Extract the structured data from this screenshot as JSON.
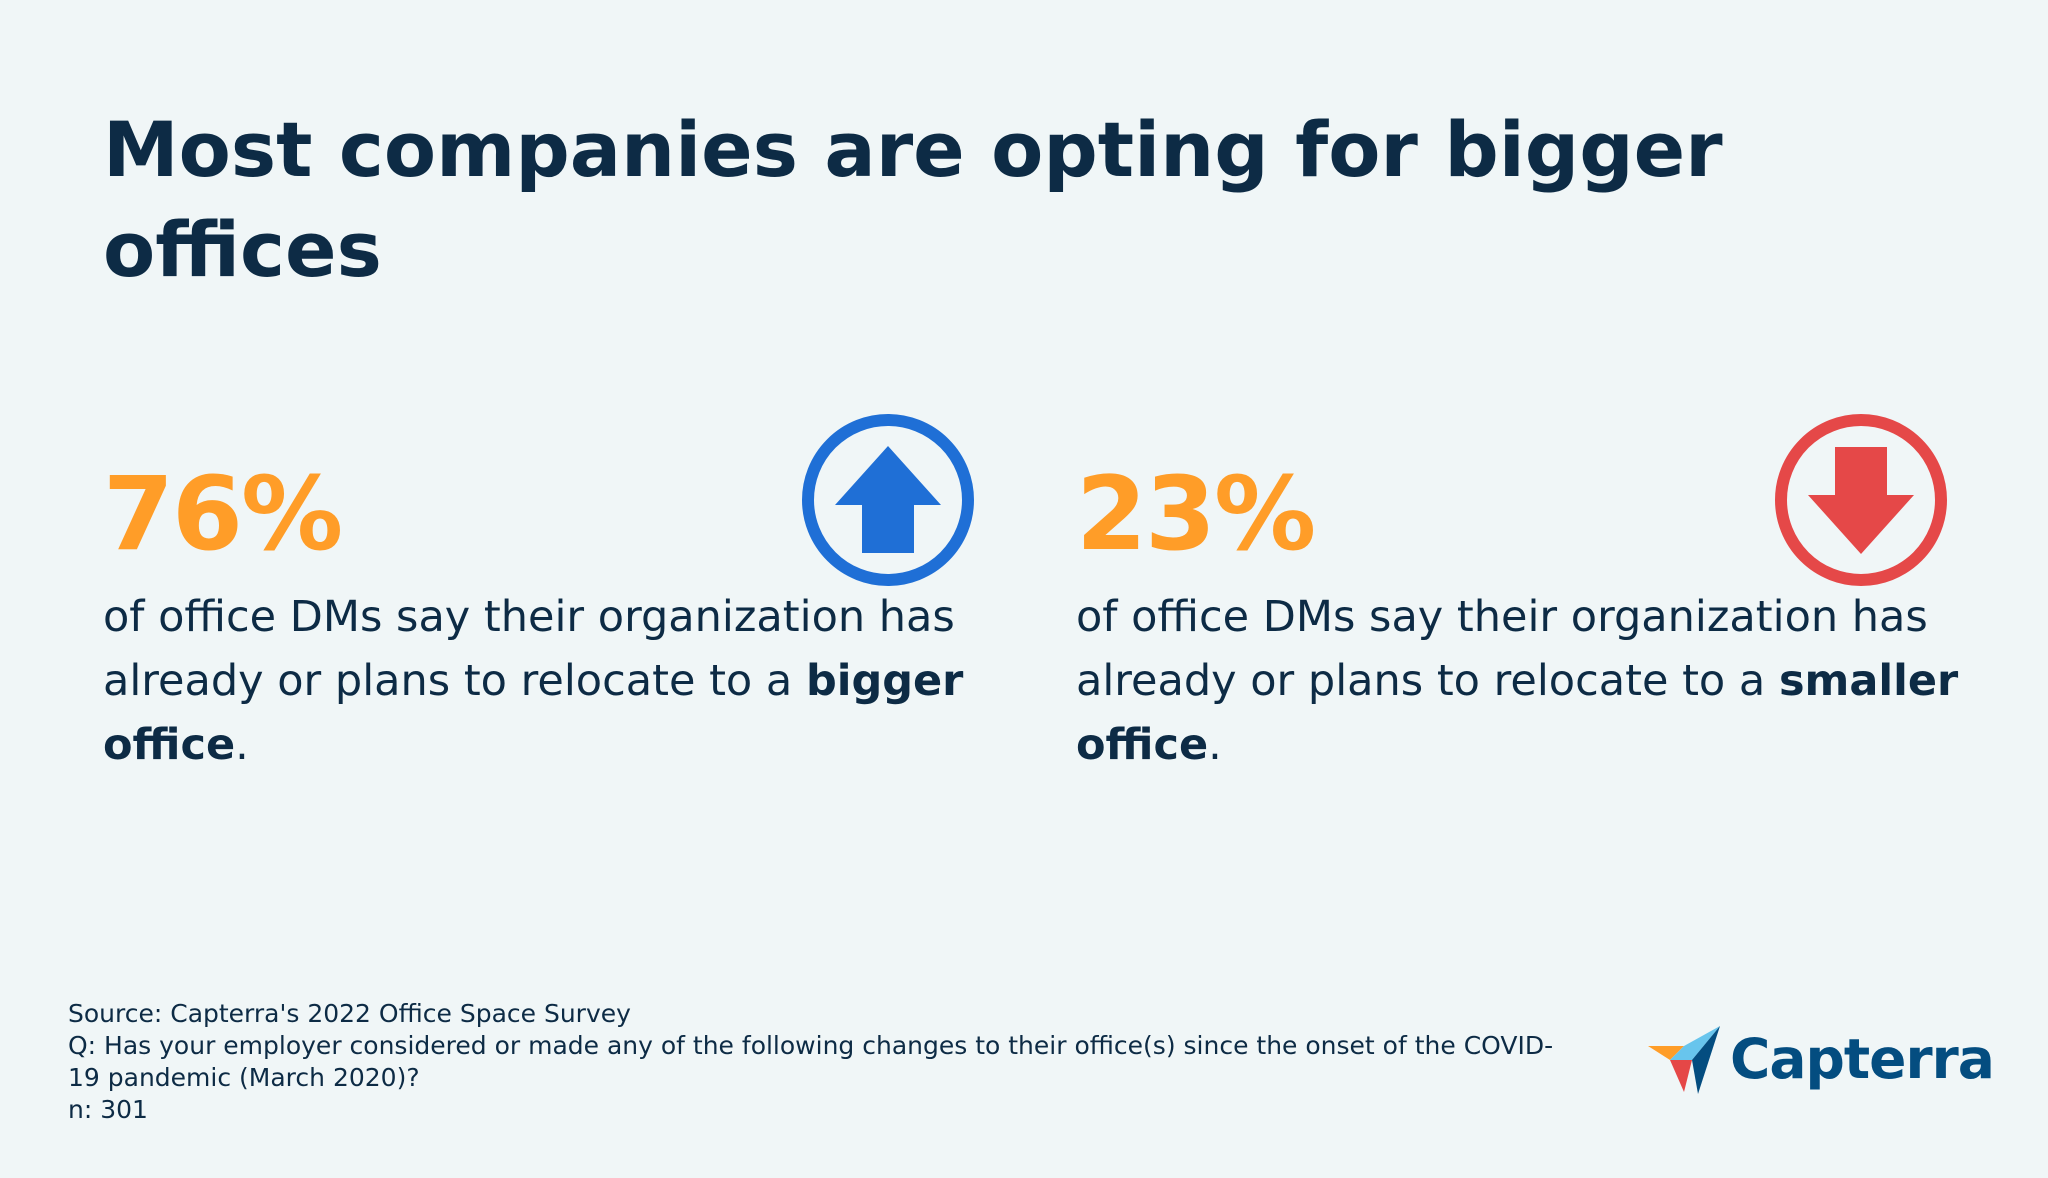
{
  "title": "Most companies are opting for bigger offices",
  "chart_data": {
    "type": "table",
    "title": "Most companies are opting for bigger offices",
    "categories": [
      "bigger office",
      "smaller office"
    ],
    "values": [
      76,
      23
    ],
    "unit": "%"
  },
  "stats": [
    {
      "value": "76%",
      "text": "of office DMs say their organization has already or plans to relocate to a ",
      "emphasis": "bigger office",
      "suffix": ".",
      "icon": "arrow-up-circle-icon",
      "color": "#1f6fd6"
    },
    {
      "value": "23%",
      "text": "of office DMs say their organization has already or plans to relocate to a ",
      "emphasis": "smaller office",
      "suffix": ".",
      "icon": "arrow-down-circle-icon",
      "color": "#e54848"
    }
  ],
  "colors": {
    "background": "#f0f6f7",
    "text": "#0d2b45",
    "accent": "#ff9d28",
    "brand": "#044d80"
  },
  "footer": {
    "source": "Source: Capterra's 2022 Office Space Survey",
    "question_line1": "Q: Has your employer considered or made any of the following changes to their office(s) since the onset of the COVID-",
    "question_line2": "19 pandemic (March 2020)?",
    "n": "n: 301"
  },
  "logo": {
    "text": "Capterra",
    "icon": "capterra-logo-icon"
  }
}
